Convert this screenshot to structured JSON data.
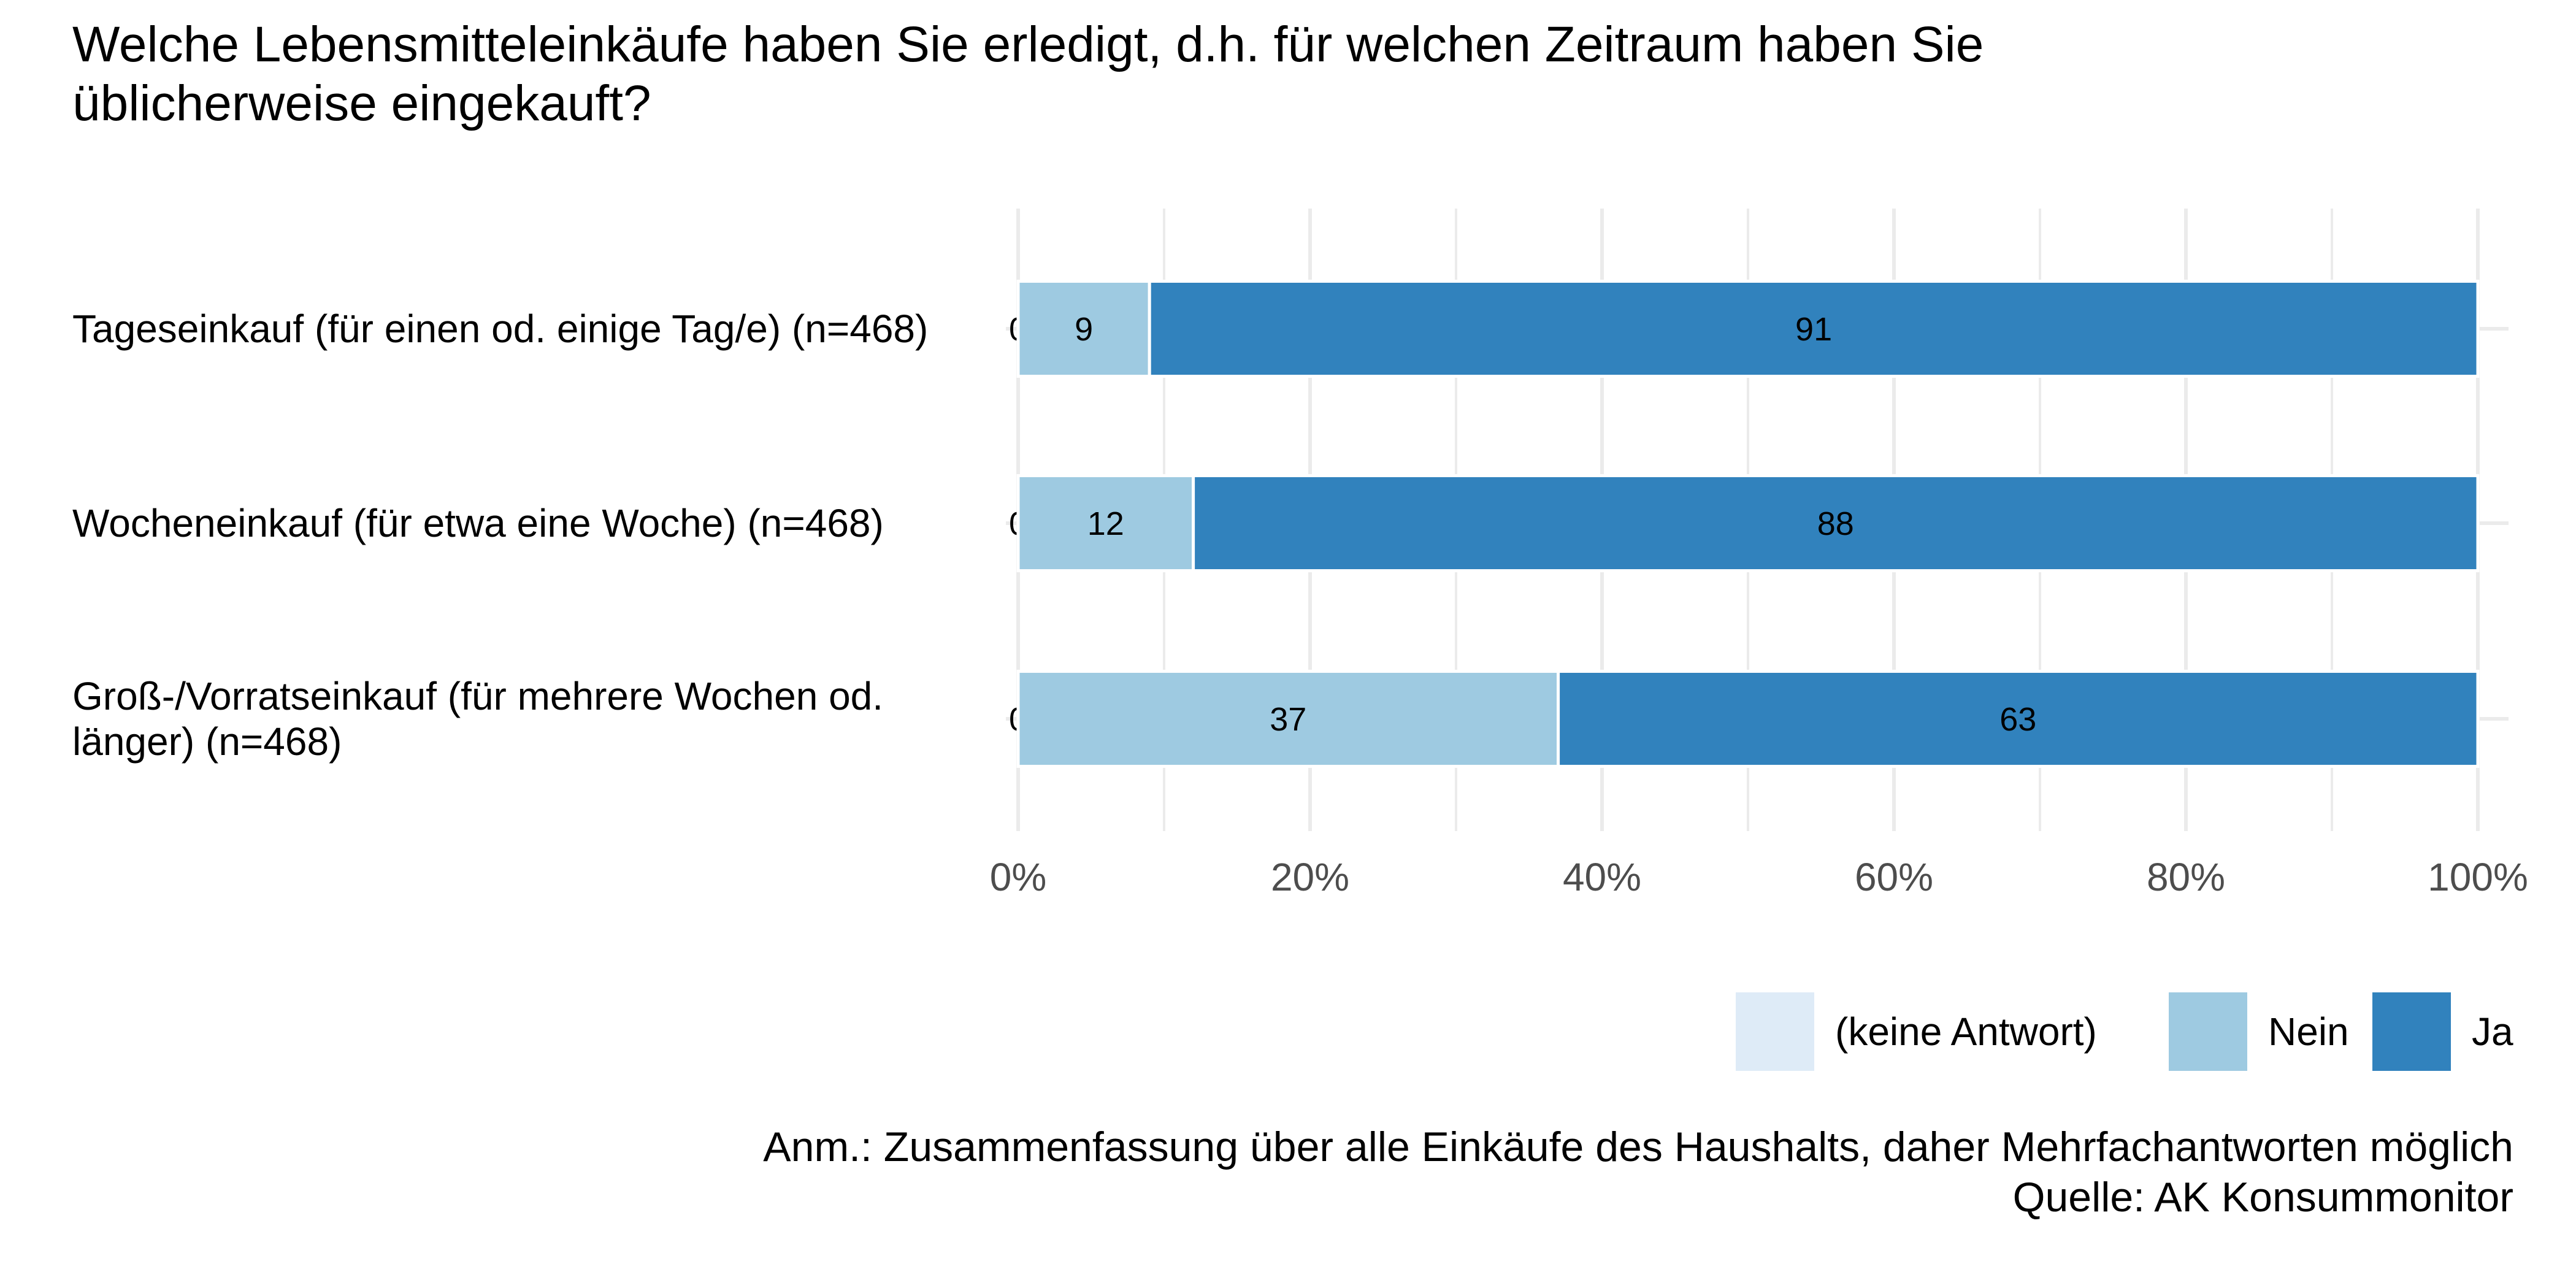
{
  "chart_data": {
    "type": "bar",
    "orientation": "horizontal",
    "stacked": true,
    "title": "Welche Lebensmitteleinkäufe haben Sie erledigt, d.h. für welchen Zeitraum haben Sie üblicherweise eingekauft?",
    "title_lines": [
      "Welche Lebensmitteleinkäufe haben Sie erledigt, d.h. für welchen Zeitraum haben Sie",
      "üblicherweise eingekauft?"
    ],
    "categories": [
      "Tageseinkauf (für einen od. einige Tag/e) (n=468)",
      "Wocheneinkauf (für etwa eine Woche) (n=468)",
      "Groß-/Vorratseinkauf (für mehrere Wochen od. länger) (n=468)"
    ],
    "category_lines": [
      [
        "Tageseinkauf (für einen od. einige Tag/e) (n=468)"
      ],
      [
        "Wocheneinkauf (für etwa eine Woche) (n=468)"
      ],
      [
        "Groß-/Vorratseinkauf (für mehrere Wochen od.",
        "länger) (n=468)"
      ]
    ],
    "series": [
      {
        "name": "(keine Antwort)",
        "color": "#deebf7",
        "values": [
          0,
          0,
          0
        ]
      },
      {
        "name": "Nein",
        "color": "#9ecae1",
        "values": [
          9,
          12,
          37
        ]
      },
      {
        "name": "Ja",
        "color": "#3182bd",
        "values": [
          91,
          88,
          63
        ]
      }
    ],
    "xlim": [
      0,
      100
    ],
    "x_ticks": [
      "0%",
      "20%",
      "40%",
      "60%",
      "80%",
      "100%"
    ],
    "grid": true,
    "legend_position": "bottom-right",
    "caption_lines": [
      "Anm.: Zusammenfassung über alle Einkäufe des Haushalts, daher Mehrfachantworten möglich",
      "Quelle: AK Konsummonitor"
    ]
  }
}
